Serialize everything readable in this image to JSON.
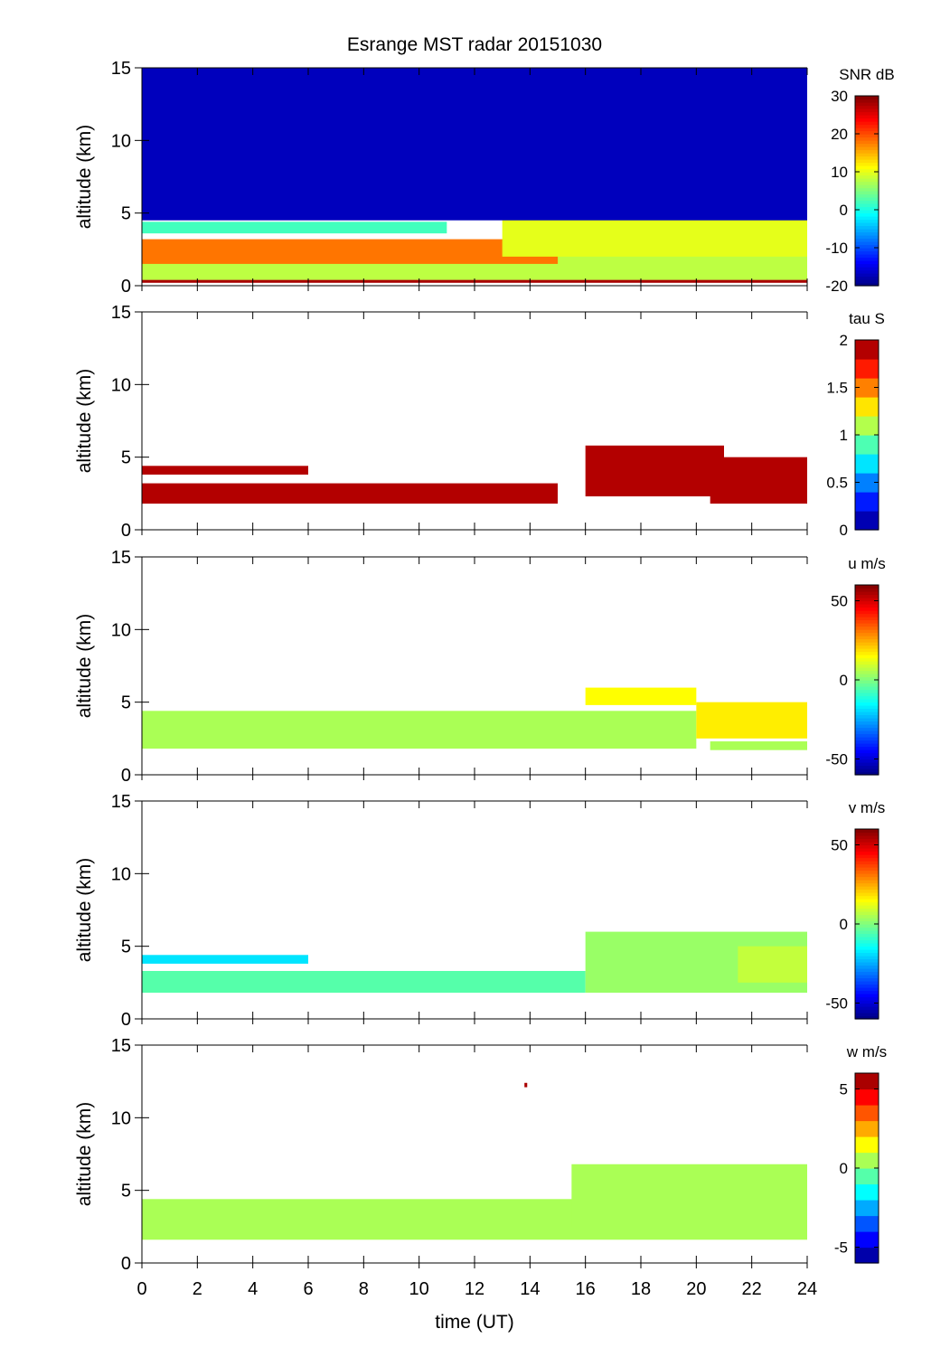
{
  "figure": {
    "title": "Esrange MST radar 20151030",
    "xlabel": "time (UT)"
  },
  "chart_data": [
    {
      "type": "heatmap",
      "title": "Esrange MST radar 20151030",
      "ylabel": "altitude (km)",
      "xlim": [
        0,
        24
      ],
      "ylim": [
        0,
        15
      ],
      "yticks": [
        0,
        5,
        10,
        15
      ],
      "xticks": [
        0,
        2,
        4,
        6,
        8,
        10,
        12,
        14,
        16,
        18,
        20,
        22,
        24
      ],
      "colorbar": {
        "label": "SNR dB",
        "clim": [
          -20,
          30
        ],
        "ticks": [
          -20,
          -10,
          0,
          10,
          20,
          30
        ],
        "continuous": true
      },
      "layers": [
        {
          "time_range": [
            0,
            24
          ],
          "alt_range": [
            0.2,
            0.4
          ],
          "value": 28
        },
        {
          "time_range": [
            0,
            24
          ],
          "alt_range": [
            0.4,
            2.6
          ],
          "value": 8
        },
        {
          "time_range": [
            0,
            11
          ],
          "alt_range": [
            3.6,
            4.4
          ],
          "value": 2
        },
        {
          "time_range": [
            0,
            15
          ],
          "alt_range": [
            1.5,
            3.2
          ],
          "value": 18
        },
        {
          "time_range": [
            13,
            24
          ],
          "alt_range": [
            2.0,
            5.0
          ],
          "value": 10
        },
        {
          "time_range": [
            0,
            24
          ],
          "alt_range": [
            4.5,
            15
          ],
          "value": -17
        }
      ]
    },
    {
      "type": "heatmap",
      "ylabel": "altitude (km)",
      "xlim": [
        0,
        24
      ],
      "ylim": [
        0,
        15
      ],
      "yticks": [
        0,
        5,
        10,
        15
      ],
      "xticks": [
        0,
        2,
        4,
        6,
        8,
        10,
        12,
        14,
        16,
        18,
        20,
        22,
        24
      ],
      "colorbar": {
        "label": "tau S",
        "clim": [
          0,
          2
        ],
        "ticks": [
          0,
          0.5,
          1,
          1.5,
          2
        ],
        "levels": 10
      },
      "layers": [
        {
          "time_range": [
            0,
            6
          ],
          "alt_range": [
            3.8,
            4.4
          ],
          "value": 2
        },
        {
          "time_range": [
            0,
            15
          ],
          "alt_range": [
            1.8,
            3.2
          ],
          "value": 2
        },
        {
          "time_range": [
            16,
            21
          ],
          "alt_range": [
            2.3,
            5.8
          ],
          "value": 2
        },
        {
          "time_range": [
            20.5,
            24
          ],
          "alt_range": [
            1.8,
            5.0
          ],
          "value": 2
        }
      ]
    },
    {
      "type": "heatmap",
      "ylabel": "altitude (km)",
      "xlim": [
        0,
        24
      ],
      "ylim": [
        0,
        15
      ],
      "yticks": [
        0,
        5,
        10,
        15
      ],
      "xticks": [
        0,
        2,
        4,
        6,
        8,
        10,
        12,
        14,
        16,
        18,
        20,
        22,
        24
      ],
      "colorbar": {
        "label": "u m/s",
        "clim": [
          -60,
          60
        ],
        "ticks": [
          -50,
          0,
          50
        ],
        "continuous": true
      },
      "layers": [
        {
          "time_range": [
            0,
            20
          ],
          "alt_range": [
            1.8,
            4.4
          ],
          "value": 5
        },
        {
          "time_range": [
            16,
            20
          ],
          "alt_range": [
            4.8,
            6.0
          ],
          "value": 15
        },
        {
          "time_range": [
            20,
            24
          ],
          "alt_range": [
            2.5,
            5.0
          ],
          "value": 17
        },
        {
          "time_range": [
            20.5,
            24
          ],
          "alt_range": [
            1.7,
            2.3
          ],
          "value": 5
        }
      ]
    },
    {
      "type": "heatmap",
      "ylabel": "altitude (km)",
      "xlim": [
        0,
        24
      ],
      "ylim": [
        0,
        15
      ],
      "yticks": [
        0,
        5,
        10,
        15
      ],
      "xticks": [
        0,
        2,
        4,
        6,
        8,
        10,
        12,
        14,
        16,
        18,
        20,
        22,
        24
      ],
      "colorbar": {
        "label": "v m/s",
        "clim": [
          -60,
          60
        ],
        "ticks": [
          -50,
          0,
          50
        ],
        "continuous": true
      },
      "layers": [
        {
          "time_range": [
            0,
            6
          ],
          "alt_range": [
            3.8,
            4.4
          ],
          "value": -18
        },
        {
          "time_range": [
            0,
            16
          ],
          "alt_range": [
            1.8,
            3.3
          ],
          "value": -5
        },
        {
          "time_range": [
            16,
            24
          ],
          "alt_range": [
            1.8,
            6.0
          ],
          "value": 3
        },
        {
          "time_range": [
            21.5,
            24
          ],
          "alt_range": [
            2.5,
            5.0
          ],
          "value": 8
        }
      ]
    },
    {
      "type": "heatmap",
      "ylabel": "altitude (km)",
      "xlim": [
        0,
        24
      ],
      "ylim": [
        0,
        15
      ],
      "yticks": [
        0,
        5,
        10,
        15
      ],
      "xticks": [
        0,
        2,
        4,
        6,
        8,
        10,
        12,
        14,
        16,
        18,
        20,
        22,
        24
      ],
      "colorbar": {
        "label": "w m/s",
        "clim": [
          -6,
          6
        ],
        "ticks": [
          -5,
          0,
          5
        ],
        "levels": 12
      },
      "layers": [
        {
          "time_range": [
            0,
            24
          ],
          "alt_range": [
            1.6,
            4.4
          ],
          "value": 0.3
        },
        {
          "time_range": [
            15.5,
            24
          ],
          "alt_range": [
            2.5,
            6.8
          ],
          "value": 0
        },
        {
          "time_range": [
            13.8,
            13.9
          ],
          "alt_range": [
            12.1,
            12.4
          ],
          "value": 6
        }
      ]
    }
  ]
}
